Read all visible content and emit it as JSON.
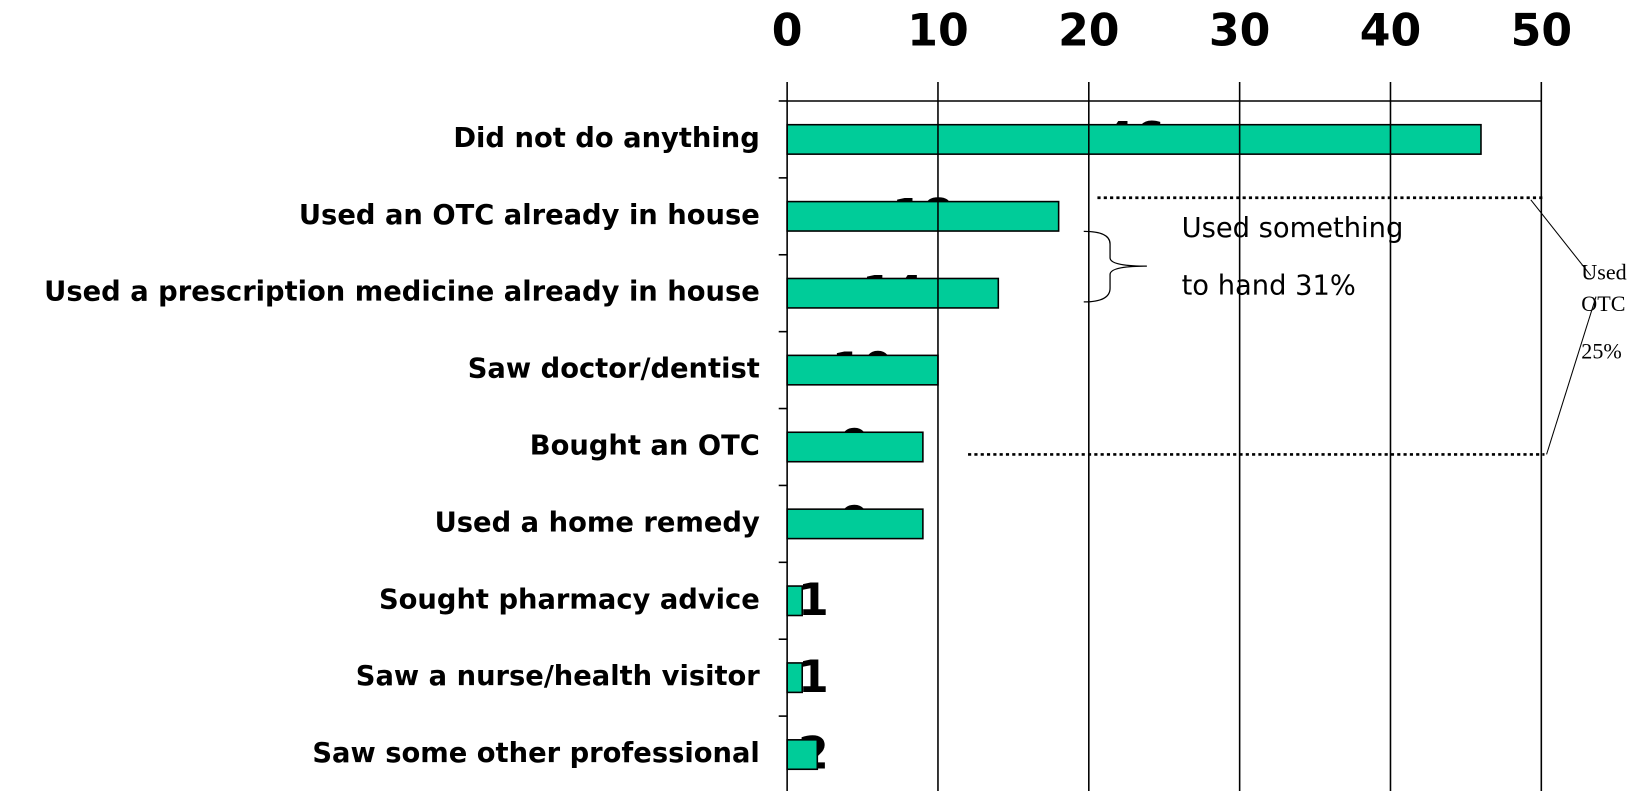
{
  "chart_data": {
    "type": "bar",
    "orientation": "horizontal",
    "categories": [
      "Did not do anything",
      "Used an OTC already in house",
      "Used a prescription medicine already in house",
      "Saw doctor/dentist",
      "Bought an OTC",
      "Used a home remedy",
      "Sought pharmacy advice",
      "Saw a nurse/health visitor",
      "Saw some other professional"
    ],
    "values": [
      46,
      18,
      14,
      10,
      9,
      9,
      1,
      1,
      2
    ],
    "color": "#00cc99",
    "xlim": [
      0,
      50
    ],
    "xticks": [
      0,
      10,
      20,
      30,
      40,
      50
    ],
    "grid": true,
    "annotations": [
      "Used something",
      "to hand 31%",
      "Used",
      "OTC",
      "25%"
    ]
  }
}
